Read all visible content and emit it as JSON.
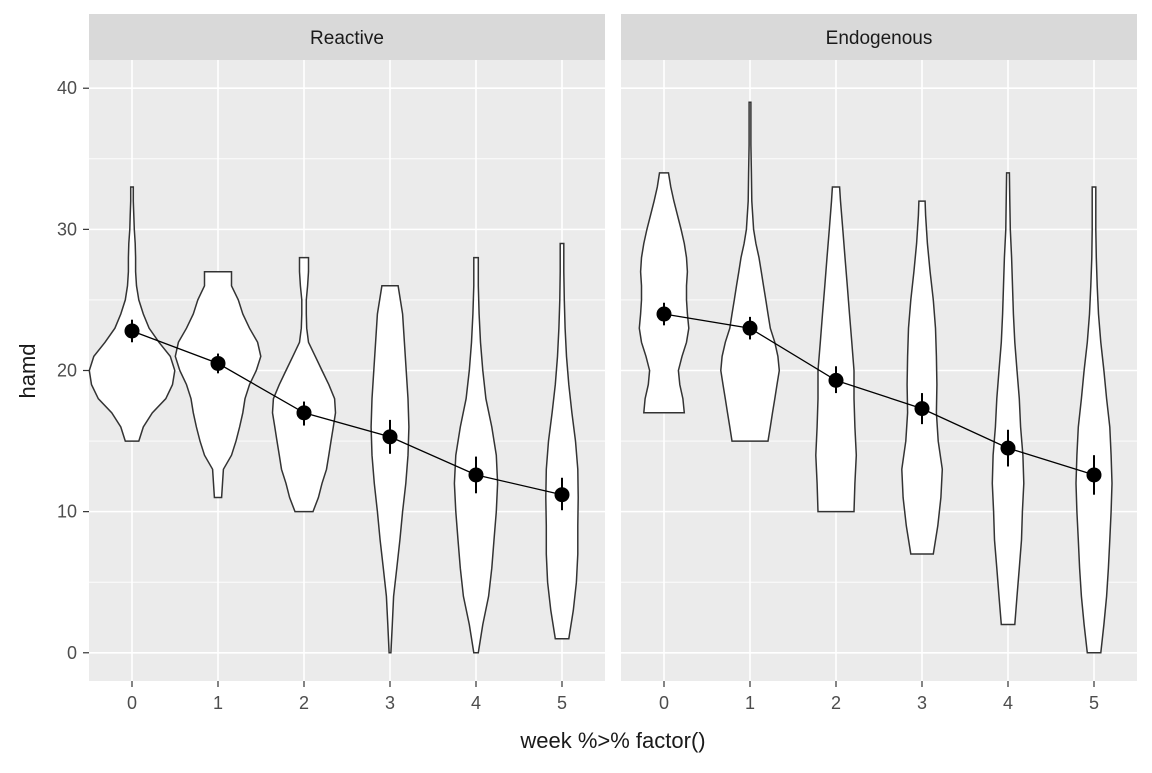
{
  "chart_data": {
    "type": "violin",
    "xlabel": "week %>% factor()",
    "ylabel": "hamd",
    "ylim": [
      -2,
      42
    ],
    "y_ticks": [
      0,
      10,
      20,
      30,
      40
    ],
    "categories": [
      "0",
      "1",
      "2",
      "3",
      "4",
      "5"
    ],
    "grid": true,
    "panels": [
      {
        "title": "Reactive",
        "violins": [
          {
            "week": "0",
            "min": 15,
            "max": 33,
            "profile": [
              [
                15,
                0.15
              ],
              [
                16,
                0.25
              ],
              [
                17,
                0.45
              ],
              [
                18,
                0.75
              ],
              [
                19,
                0.9
              ],
              [
                20,
                0.95
              ],
              [
                21,
                0.85
              ],
              [
                22,
                0.6
              ],
              [
                23,
                0.38
              ],
              [
                24,
                0.25
              ],
              [
                25,
                0.15
              ],
              [
                26,
                0.1
              ],
              [
                27,
                0.08
              ],
              [
                28,
                0.08
              ],
              [
                29,
                0.07
              ],
              [
                30,
                0.05
              ],
              [
                31,
                0.04
              ],
              [
                32,
                0.03
              ],
              [
                33,
                0.03
              ]
            ]
          },
          {
            "week": "1",
            "min": 11,
            "max": 27,
            "profile": [
              [
                11,
                0.08
              ],
              [
                12,
                0.1
              ],
              [
                13,
                0.12
              ],
              [
                14,
                0.3
              ],
              [
                15,
                0.4
              ],
              [
                16,
                0.48
              ],
              [
                17,
                0.55
              ],
              [
                18,
                0.6
              ],
              [
                19,
                0.7
              ],
              [
                20,
                0.85
              ],
              [
                21,
                0.95
              ],
              [
                22,
                0.88
              ],
              [
                23,
                0.7
              ],
              [
                24,
                0.55
              ],
              [
                25,
                0.45
              ],
              [
                26,
                0.3
              ],
              [
                27,
                0.3
              ]
            ]
          },
          {
            "week": "2",
            "min": 10,
            "max": 28,
            "profile": [
              [
                10,
                0.2
              ],
              [
                11,
                0.32
              ],
              [
                12,
                0.4
              ],
              [
                13,
                0.5
              ],
              [
                14,
                0.55
              ],
              [
                15,
                0.6
              ],
              [
                16,
                0.65
              ],
              [
                17,
                0.7
              ],
              [
                18,
                0.68
              ],
              [
                19,
                0.55
              ],
              [
                20,
                0.4
              ],
              [
                21,
                0.25
              ],
              [
                22,
                0.1
              ],
              [
                23,
                0.06
              ],
              [
                24,
                0.05
              ],
              [
                25,
                0.05
              ],
              [
                26,
                0.08
              ],
              [
                27,
                0.1
              ],
              [
                28,
                0.1
              ]
            ]
          },
          {
            "week": "3",
            "min": 0,
            "max": 26,
            "profile": [
              [
                0,
                0.02
              ],
              [
                2,
                0.05
              ],
              [
                4,
                0.08
              ],
              [
                6,
                0.15
              ],
              [
                8,
                0.22
              ],
              [
                10,
                0.28
              ],
              [
                12,
                0.35
              ],
              [
                14,
                0.4
              ],
              [
                16,
                0.42
              ],
              [
                18,
                0.4
              ],
              [
                20,
                0.36
              ],
              [
                22,
                0.32
              ],
              [
                24,
                0.28
              ],
              [
                26,
                0.18
              ]
            ]
          },
          {
            "week": "4",
            "min": 0,
            "max": 28,
            "profile": [
              [
                0,
                0.05
              ],
              [
                2,
                0.15
              ],
              [
                4,
                0.28
              ],
              [
                6,
                0.35
              ],
              [
                8,
                0.4
              ],
              [
                10,
                0.45
              ],
              [
                12,
                0.48
              ],
              [
                14,
                0.45
              ],
              [
                16,
                0.35
              ],
              [
                18,
                0.22
              ],
              [
                20,
                0.15
              ],
              [
                22,
                0.1
              ],
              [
                24,
                0.07
              ],
              [
                26,
                0.05
              ],
              [
                28,
                0.05
              ]
            ]
          },
          {
            "week": "5",
            "min": 1,
            "max": 29,
            "profile": [
              [
                1,
                0.15
              ],
              [
                3,
                0.25
              ],
              [
                5,
                0.32
              ],
              [
                7,
                0.35
              ],
              [
                9,
                0.35
              ],
              [
                11,
                0.36
              ],
              [
                13,
                0.35
              ],
              [
                15,
                0.3
              ],
              [
                17,
                0.22
              ],
              [
                19,
                0.15
              ],
              [
                21,
                0.1
              ],
              [
                23,
                0.07
              ],
              [
                25,
                0.05
              ],
              [
                27,
                0.04
              ],
              [
                29,
                0.04
              ]
            ]
          }
        ],
        "means": [
          22.8,
          20.5,
          17.0,
          15.3,
          12.6,
          11.2
        ],
        "lower": [
          22.0,
          19.8,
          16.1,
          14.1,
          11.3,
          10.1
        ],
        "upper": [
          23.6,
          21.2,
          17.8,
          16.5,
          13.9,
          12.4
        ]
      },
      {
        "title": "Endogenous",
        "violins": [
          {
            "week": "0",
            "min": 17,
            "max": 34,
            "profile": [
              [
                17,
                0.45
              ],
              [
                18,
                0.42
              ],
              [
                19,
                0.35
              ],
              [
                20,
                0.32
              ],
              [
                21,
                0.4
              ],
              [
                22,
                0.5
              ],
              [
                23,
                0.55
              ],
              [
                24,
                0.52
              ],
              [
                25,
                0.5
              ],
              [
                26,
                0.5
              ],
              [
                27,
                0.52
              ],
              [
                28,
                0.5
              ],
              [
                29,
                0.45
              ],
              [
                30,
                0.38
              ],
              [
                31,
                0.3
              ],
              [
                32,
                0.22
              ],
              [
                33,
                0.15
              ],
              [
                34,
                0.1
              ]
            ]
          },
          {
            "week": "1",
            "min": 15,
            "max": 39,
            "profile": [
              [
                15,
                0.4
              ],
              [
                16,
                0.45
              ],
              [
                17,
                0.5
              ],
              [
                18,
                0.55
              ],
              [
                19,
                0.6
              ],
              [
                20,
                0.65
              ],
              [
                21,
                0.62
              ],
              [
                22,
                0.55
              ],
              [
                23,
                0.45
              ],
              [
                24,
                0.4
              ],
              [
                25,
                0.35
              ],
              [
                26,
                0.3
              ],
              [
                27,
                0.25
              ],
              [
                28,
                0.2
              ],
              [
                29,
                0.13
              ],
              [
                30,
                0.08
              ],
              [
                32,
                0.04
              ],
              [
                34,
                0.03
              ],
              [
                36,
                0.02
              ],
              [
                38,
                0.02
              ],
              [
                39,
                0.02
              ]
            ]
          },
          {
            "week": "2",
            "min": 10,
            "max": 33,
            "profile": [
              [
                10,
                0.4
              ],
              [
                12,
                0.42
              ],
              [
                14,
                0.45
              ],
              [
                16,
                0.42
              ],
              [
                18,
                0.4
              ],
              [
                20,
                0.4
              ],
              [
                22,
                0.35
              ],
              [
                24,
                0.3
              ],
              [
                26,
                0.25
              ],
              [
                28,
                0.2
              ],
              [
                30,
                0.15
              ],
              [
                32,
                0.1
              ],
              [
                33,
                0.08
              ]
            ]
          },
          {
            "week": "3",
            "min": 7,
            "max": 32,
            "profile": [
              [
                7,
                0.25
              ],
              [
                9,
                0.35
              ],
              [
                11,
                0.42
              ],
              [
                13,
                0.45
              ],
              [
                15,
                0.36
              ],
              [
                17,
                0.32
              ],
              [
                19,
                0.33
              ],
              [
                21,
                0.32
              ],
              [
                23,
                0.3
              ],
              [
                25,
                0.25
              ],
              [
                27,
                0.18
              ],
              [
                29,
                0.12
              ],
              [
                31,
                0.08
              ],
              [
                32,
                0.07
              ]
            ]
          },
          {
            "week": "4",
            "min": 2,
            "max": 34,
            "profile": [
              [
                2,
                0.15
              ],
              [
                4,
                0.2
              ],
              [
                6,
                0.25
              ],
              [
                8,
                0.3
              ],
              [
                10,
                0.32
              ],
              [
                12,
                0.35
              ],
              [
                14,
                0.33
              ],
              [
                16,
                0.28
              ],
              [
                18,
                0.25
              ],
              [
                20,
                0.2
              ],
              [
                22,
                0.15
              ],
              [
                24,
                0.12
              ],
              [
                26,
                0.1
              ],
              [
                28,
                0.08
              ],
              [
                30,
                0.05
              ],
              [
                32,
                0.04
              ],
              [
                34,
                0.03
              ]
            ]
          },
          {
            "week": "5",
            "min": 0,
            "max": 33,
            "profile": [
              [
                0,
                0.15
              ],
              [
                2,
                0.22
              ],
              [
                4,
                0.28
              ],
              [
                6,
                0.32
              ],
              [
                8,
                0.35
              ],
              [
                10,
                0.38
              ],
              [
                12,
                0.4
              ],
              [
                14,
                0.38
              ],
              [
                16,
                0.35
              ],
              [
                18,
                0.28
              ],
              [
                20,
                0.22
              ],
              [
                22,
                0.15
              ],
              [
                24,
                0.1
              ],
              [
                26,
                0.07
              ],
              [
                28,
                0.05
              ],
              [
                30,
                0.04
              ],
              [
                32,
                0.04
              ],
              [
                33,
                0.04
              ]
            ]
          }
        ],
        "means": [
          24.0,
          23.0,
          19.3,
          17.3,
          14.5,
          12.6
        ],
        "lower": [
          23.2,
          22.2,
          18.4,
          16.2,
          13.2,
          11.2
        ],
        "upper": [
          24.8,
          23.8,
          20.3,
          18.4,
          15.8,
          14.0
        ]
      }
    ],
    "colors": {
      "panel_bg": "#EBEBEB",
      "strip_bg": "#D9D9D9",
      "grid": "#FFFFFF",
      "violin_fill": "#FFFFFF",
      "violin_stroke": "#333333",
      "point": "#000000",
      "text": "#4D4D4D",
      "title_text": "#1A1A1A"
    }
  }
}
